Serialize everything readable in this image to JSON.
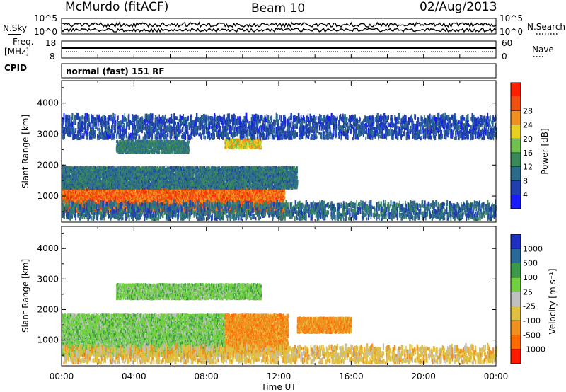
{
  "header": {
    "station": "McMurdo (fitACF)",
    "beam": "Beam 10",
    "date": "02/Aug/2013"
  },
  "noise_panel": {
    "left_label": "N.Sky",
    "right_label": "N.Search",
    "left_ticks": [
      "10^5",
      "10^0"
    ],
    "right_ticks": [
      "10^5",
      "10^0"
    ]
  },
  "freq_panel": {
    "left_label_1": "Freq.",
    "left_label_2": "[MHz]",
    "right_label": "Nave",
    "left_ticks": [
      "18",
      "8"
    ],
    "right_ticks": [
      "60",
      "0"
    ]
  },
  "cpid_panel": {
    "label": "CPID",
    "text": "normal (fast) 151 RF"
  },
  "colors": {
    "power": [
      "#1a1aff",
      "#2040b0",
      "#2d6b8a",
      "#3a8a5a",
      "#70c050",
      "#e8d020",
      "#f09020",
      "#f05010",
      "#ff2000"
    ],
    "velocity": [
      "#ff1a00",
      "#ff6a00",
      "#f09020",
      "#e0c040",
      "#c0c0c0",
      "#70d040",
      "#3a9a4a",
      "#2a6a9a",
      "#2030c0"
    ]
  },
  "chart_data": [
    {
      "type": "heatmap",
      "panel": "power",
      "xlabel": "",
      "ylabel": "Slant Range [km]",
      "x_ticks": [
        "00:00",
        "04:00",
        "08:00",
        "12:00",
        "16:00",
        "20:00",
        "00:00"
      ],
      "x_range_hours": [
        0,
        24
      ],
      "y_ticks": [
        1000,
        2000,
        3000,
        4000
      ],
      "ylim": [
        180,
        4700
      ],
      "colorbar": {
        "label": "Power [dB]",
        "ticks": [
          4,
          8,
          12,
          16,
          20,
          24,
          28
        ],
        "range": [
          0,
          32
        ]
      },
      "regions": [
        {
          "t_start": 0.0,
          "t_end": 12.3,
          "r_min": 450,
          "r_max": 1200,
          "value": 27
        },
        {
          "t_start": 0.0,
          "t_end": 13.0,
          "r_min": 1200,
          "r_max": 1900,
          "value": 9
        },
        {
          "t_start": 3.0,
          "t_end": 7.0,
          "r_min": 2350,
          "r_max": 2750,
          "value": 10
        },
        {
          "t_start": 9.0,
          "t_end": 11.0,
          "r_min": 2500,
          "r_max": 2800,
          "value": 20
        },
        {
          "t_start": 0.0,
          "t_end": 24.0,
          "r_min": 200,
          "r_max": 700,
          "value": 8
        },
        {
          "t_start": 0.0,
          "t_end": 24.0,
          "r_min": 2800,
          "r_max": 3500,
          "value": 5
        }
      ]
    },
    {
      "type": "heatmap",
      "panel": "velocity",
      "xlabel": "Time UT",
      "ylabel": "Slant Range [km]",
      "x_ticks": [
        "00:00",
        "04:00",
        "08:00",
        "12:00",
        "16:00",
        "20:00",
        "00:00"
      ],
      "x_range_hours": [
        0,
        24
      ],
      "y_ticks": [
        1000,
        2000,
        3000,
        4000
      ],
      "ylim": [
        180,
        4700
      ],
      "colorbar": {
        "label": "Velocity [m s⁻¹]",
        "ticks": [
          "1000",
          "500",
          "100",
          "25",
          "-25",
          "-100",
          "-500",
          "-1000"
        ]
      },
      "regions": [
        {
          "t_start": 0.0,
          "t_end": 9.0,
          "r_min": 450,
          "r_max": 1800,
          "value": 100
        },
        {
          "t_start": 9.0,
          "t_end": 12.5,
          "r_min": 500,
          "r_max": 1800,
          "value": -100
        },
        {
          "t_start": 13.0,
          "t_end": 16.0,
          "r_min": 1200,
          "r_max": 1700,
          "value": -100
        },
        {
          "t_start": 3.0,
          "t_end": 11.0,
          "r_min": 2300,
          "r_max": 2800,
          "value": 100
        },
        {
          "t_start": 0.0,
          "t_end": 24.0,
          "r_min": 200,
          "r_max": 700,
          "value": -25
        }
      ]
    }
  ]
}
